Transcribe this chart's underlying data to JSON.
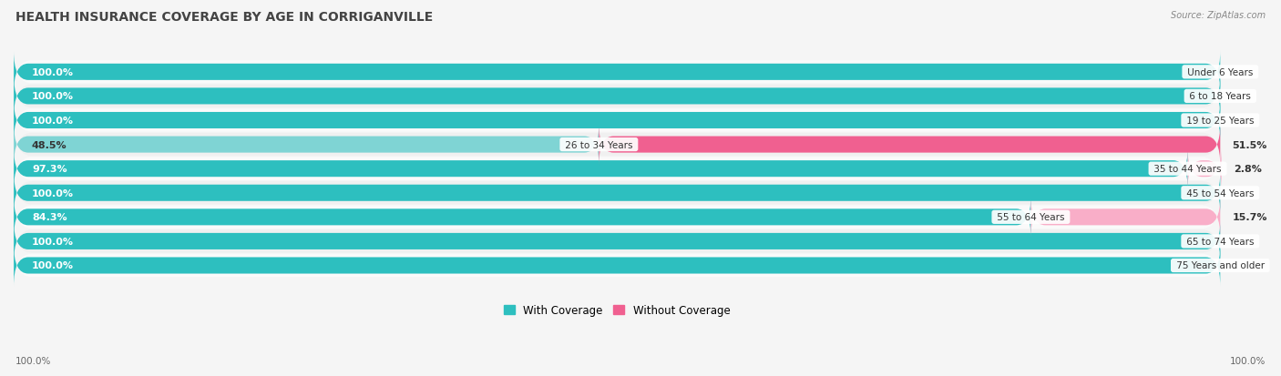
{
  "title": "HEALTH INSURANCE COVERAGE BY AGE IN CORRIGANVILLE",
  "source": "Source: ZipAtlas.com",
  "categories": [
    "Under 6 Years",
    "6 to 18 Years",
    "19 to 25 Years",
    "26 to 34 Years",
    "35 to 44 Years",
    "45 to 54 Years",
    "55 to 64 Years",
    "65 to 74 Years",
    "75 Years and older"
  ],
  "with_coverage": [
    100.0,
    100.0,
    100.0,
    48.5,
    97.3,
    100.0,
    84.3,
    100.0,
    100.0
  ],
  "without_coverage": [
    0.0,
    0.0,
    0.0,
    51.5,
    2.8,
    0.0,
    15.7,
    0.0,
    0.0
  ],
  "color_with_full": "#2dbfbf",
  "color_with_light": "#7fd4d4",
  "color_without_full": "#f06090",
  "color_without_light": "#f9aec8",
  "row_bg_odd": "#f0f0f0",
  "row_bg_even": "#fafafa",
  "bg_color": "#f5f5f5",
  "title_fontsize": 10,
  "label_fontsize": 8,
  "cat_fontsize": 7.5,
  "bar_height": 0.68
}
